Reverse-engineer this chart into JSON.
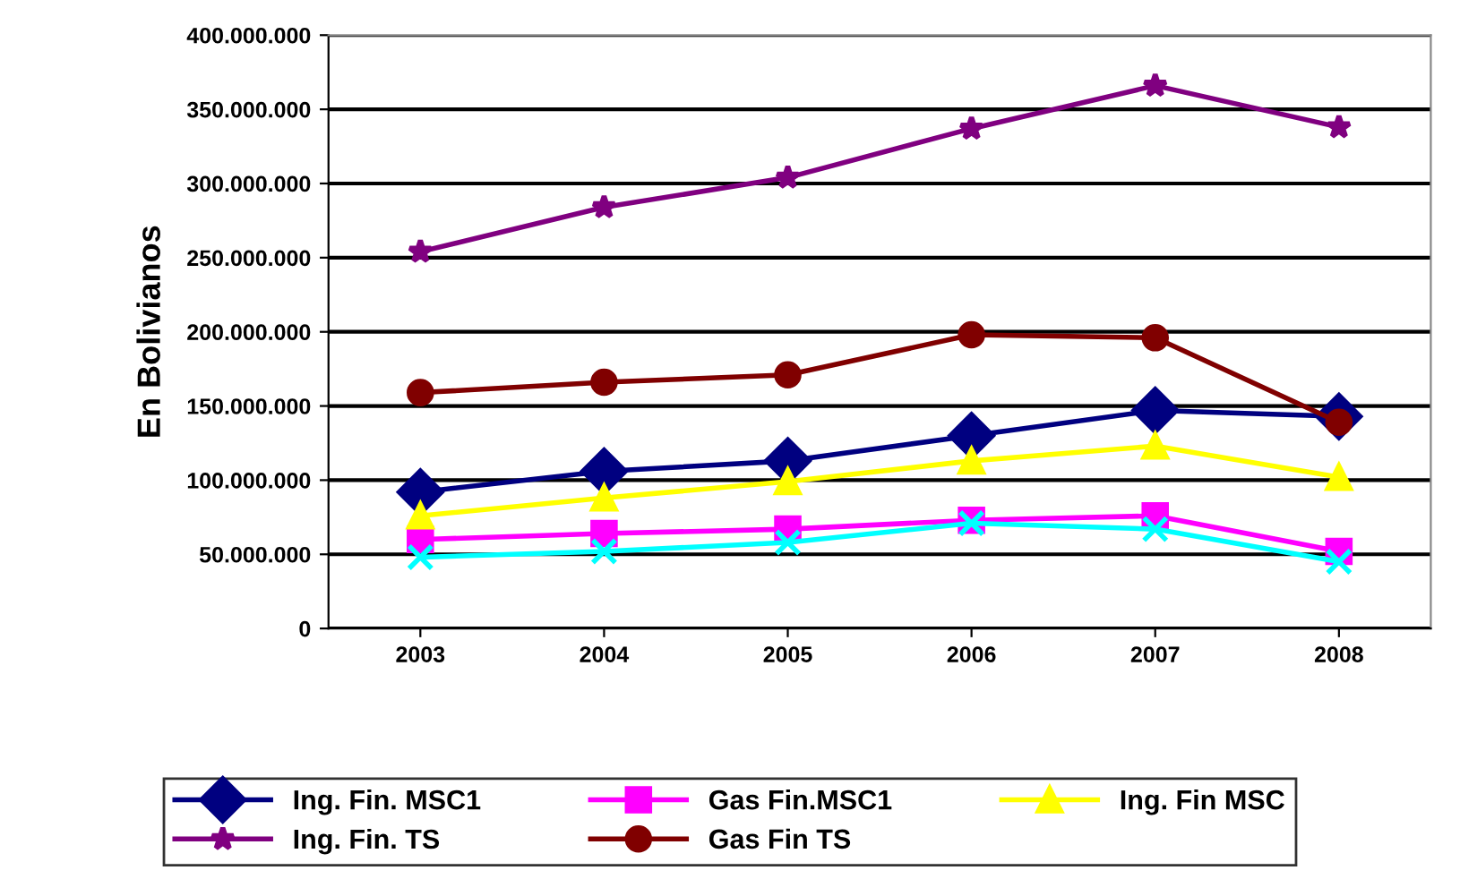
{
  "chart_data": {
    "type": "line",
    "ylabel": "En Bolivianos",
    "categories": [
      "2003",
      "2004",
      "2005",
      "2006",
      "2007",
      "2008"
    ],
    "series": [
      {
        "name": "Ing. Fin. MSC1",
        "color": "#000080",
        "marker": "diamond",
        "values": [
          92000000,
          106000000,
          113000000,
          130000000,
          147000000,
          143000000
        ]
      },
      {
        "name": "Gas Fin.MSC1",
        "color": "#ff00ff",
        "marker": "square",
        "values": [
          60000000,
          64000000,
          67000000,
          73000000,
          76000000,
          52000000
        ]
      },
      {
        "name": "Ing. Fin MSC",
        "color": "#ffff00",
        "marker": "triangle",
        "values": [
          76000000,
          88000000,
          99000000,
          113000000,
          123000000,
          102000000
        ]
      },
      {
        "name": "Ing. Fin. TS",
        "color": "#800080",
        "marker": "star",
        "values": [
          254000000,
          284000000,
          304000000,
          337000000,
          366000000,
          338000000
        ]
      },
      {
        "name": "Gas Fin TS",
        "color": "#800000",
        "marker": "circle",
        "values": [
          159000000,
          166000000,
          171000000,
          198000000,
          196000000,
          139000000
        ]
      },
      {
        "color": "#00ffff",
        "marker": "cross",
        "values": [
          48000000,
          52000000,
          58000000,
          71000000,
          67000000,
          45000000
        ]
      }
    ],
    "ylim": [
      0,
      400000000
    ],
    "yticks": [
      {
        "value": 0,
        "label": "0"
      },
      {
        "value": 50000000,
        "label": "50.000.000"
      },
      {
        "value": 100000000,
        "label": "100.000.000"
      },
      {
        "value": 150000000,
        "label": "150.000.000"
      },
      {
        "value": 200000000,
        "label": "200.000.000"
      },
      {
        "value": 250000000,
        "label": "250.000.000"
      },
      {
        "value": 300000000,
        "label": "300.000.000"
      },
      {
        "value": 350000000,
        "label": "350.000.000"
      },
      {
        "value": 400000000,
        "label": "400.000.000"
      }
    ],
    "grid": "y",
    "legend": "bottom",
    "line_style": "solid"
  }
}
